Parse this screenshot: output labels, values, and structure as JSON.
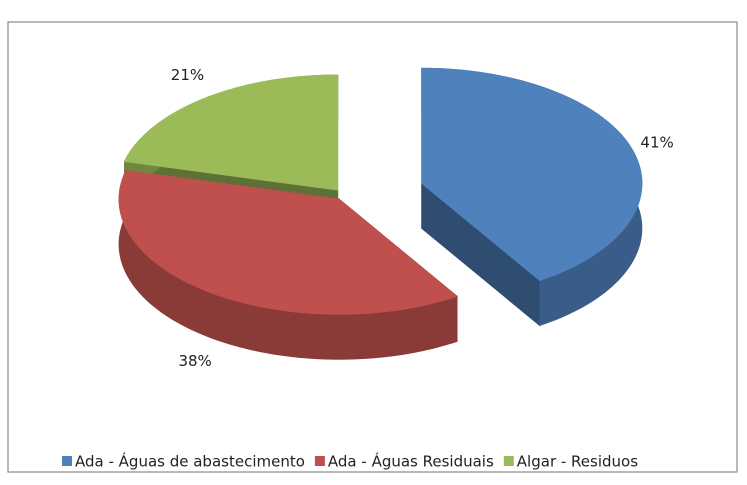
{
  "chart_data": {
    "type": "pie",
    "categories": [
      "Ada - Águas de abastecimento",
      "Ada - Águas Residuais",
      "Algar - Residuos"
    ],
    "values": [
      41,
      38,
      21
    ],
    "value_labels": [
      "41%",
      "38%",
      "21%"
    ],
    "colors": [
      "#4f81bd",
      "#c0504d",
      "#9bbb59"
    ],
    "legend": "bottom"
  }
}
